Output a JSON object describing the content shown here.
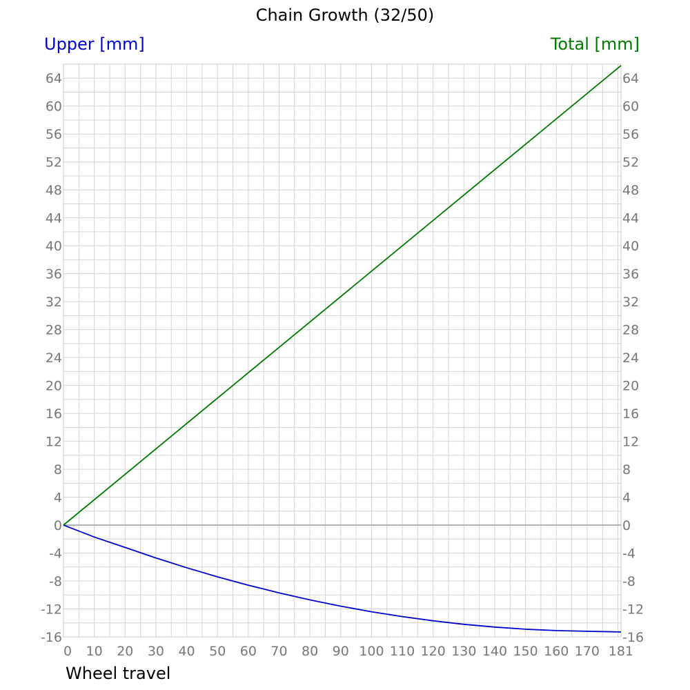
{
  "chart_data": {
    "type": "line",
    "title": "Chain Growth (32/50)",
    "xlabel": "Wheel travel",
    "ylabel_left": "Upper [mm]",
    "ylabel_right": "Total [mm]",
    "xlim": [
      0,
      181
    ],
    "ylim": [
      -16,
      66
    ],
    "x_ticks": [
      0,
      10,
      20,
      30,
      40,
      50,
      60,
      70,
      80,
      90,
      100,
      110,
      120,
      130,
      140,
      150,
      160,
      170,
      181
    ],
    "y_ticks": [
      -16,
      -12,
      -8,
      -4,
      0,
      4,
      8,
      12,
      16,
      20,
      24,
      28,
      32,
      36,
      40,
      44,
      48,
      52,
      56,
      60,
      64
    ],
    "grid": true,
    "series": [
      {
        "name": "Upper [mm]",
        "axis": "left",
        "color": "#0000cc",
        "x": [
          0,
          10,
          20,
          30,
          40,
          50,
          60,
          70,
          80,
          90,
          100,
          110,
          120,
          130,
          140,
          150,
          160,
          170,
          181
        ],
        "y": [
          0,
          -1.7,
          -3.2,
          -4.7,
          -6.1,
          -7.4,
          -8.6,
          -9.7,
          -10.7,
          -11.6,
          -12.4,
          -13.1,
          -13.7,
          -14.2,
          -14.6,
          -14.9,
          -15.1,
          -15.2,
          -15.3
        ]
      },
      {
        "name": "Total [mm]",
        "axis": "right",
        "color": "#007700",
        "x": [
          0,
          181
        ],
        "y": [
          0,
          65.8
        ]
      }
    ]
  }
}
